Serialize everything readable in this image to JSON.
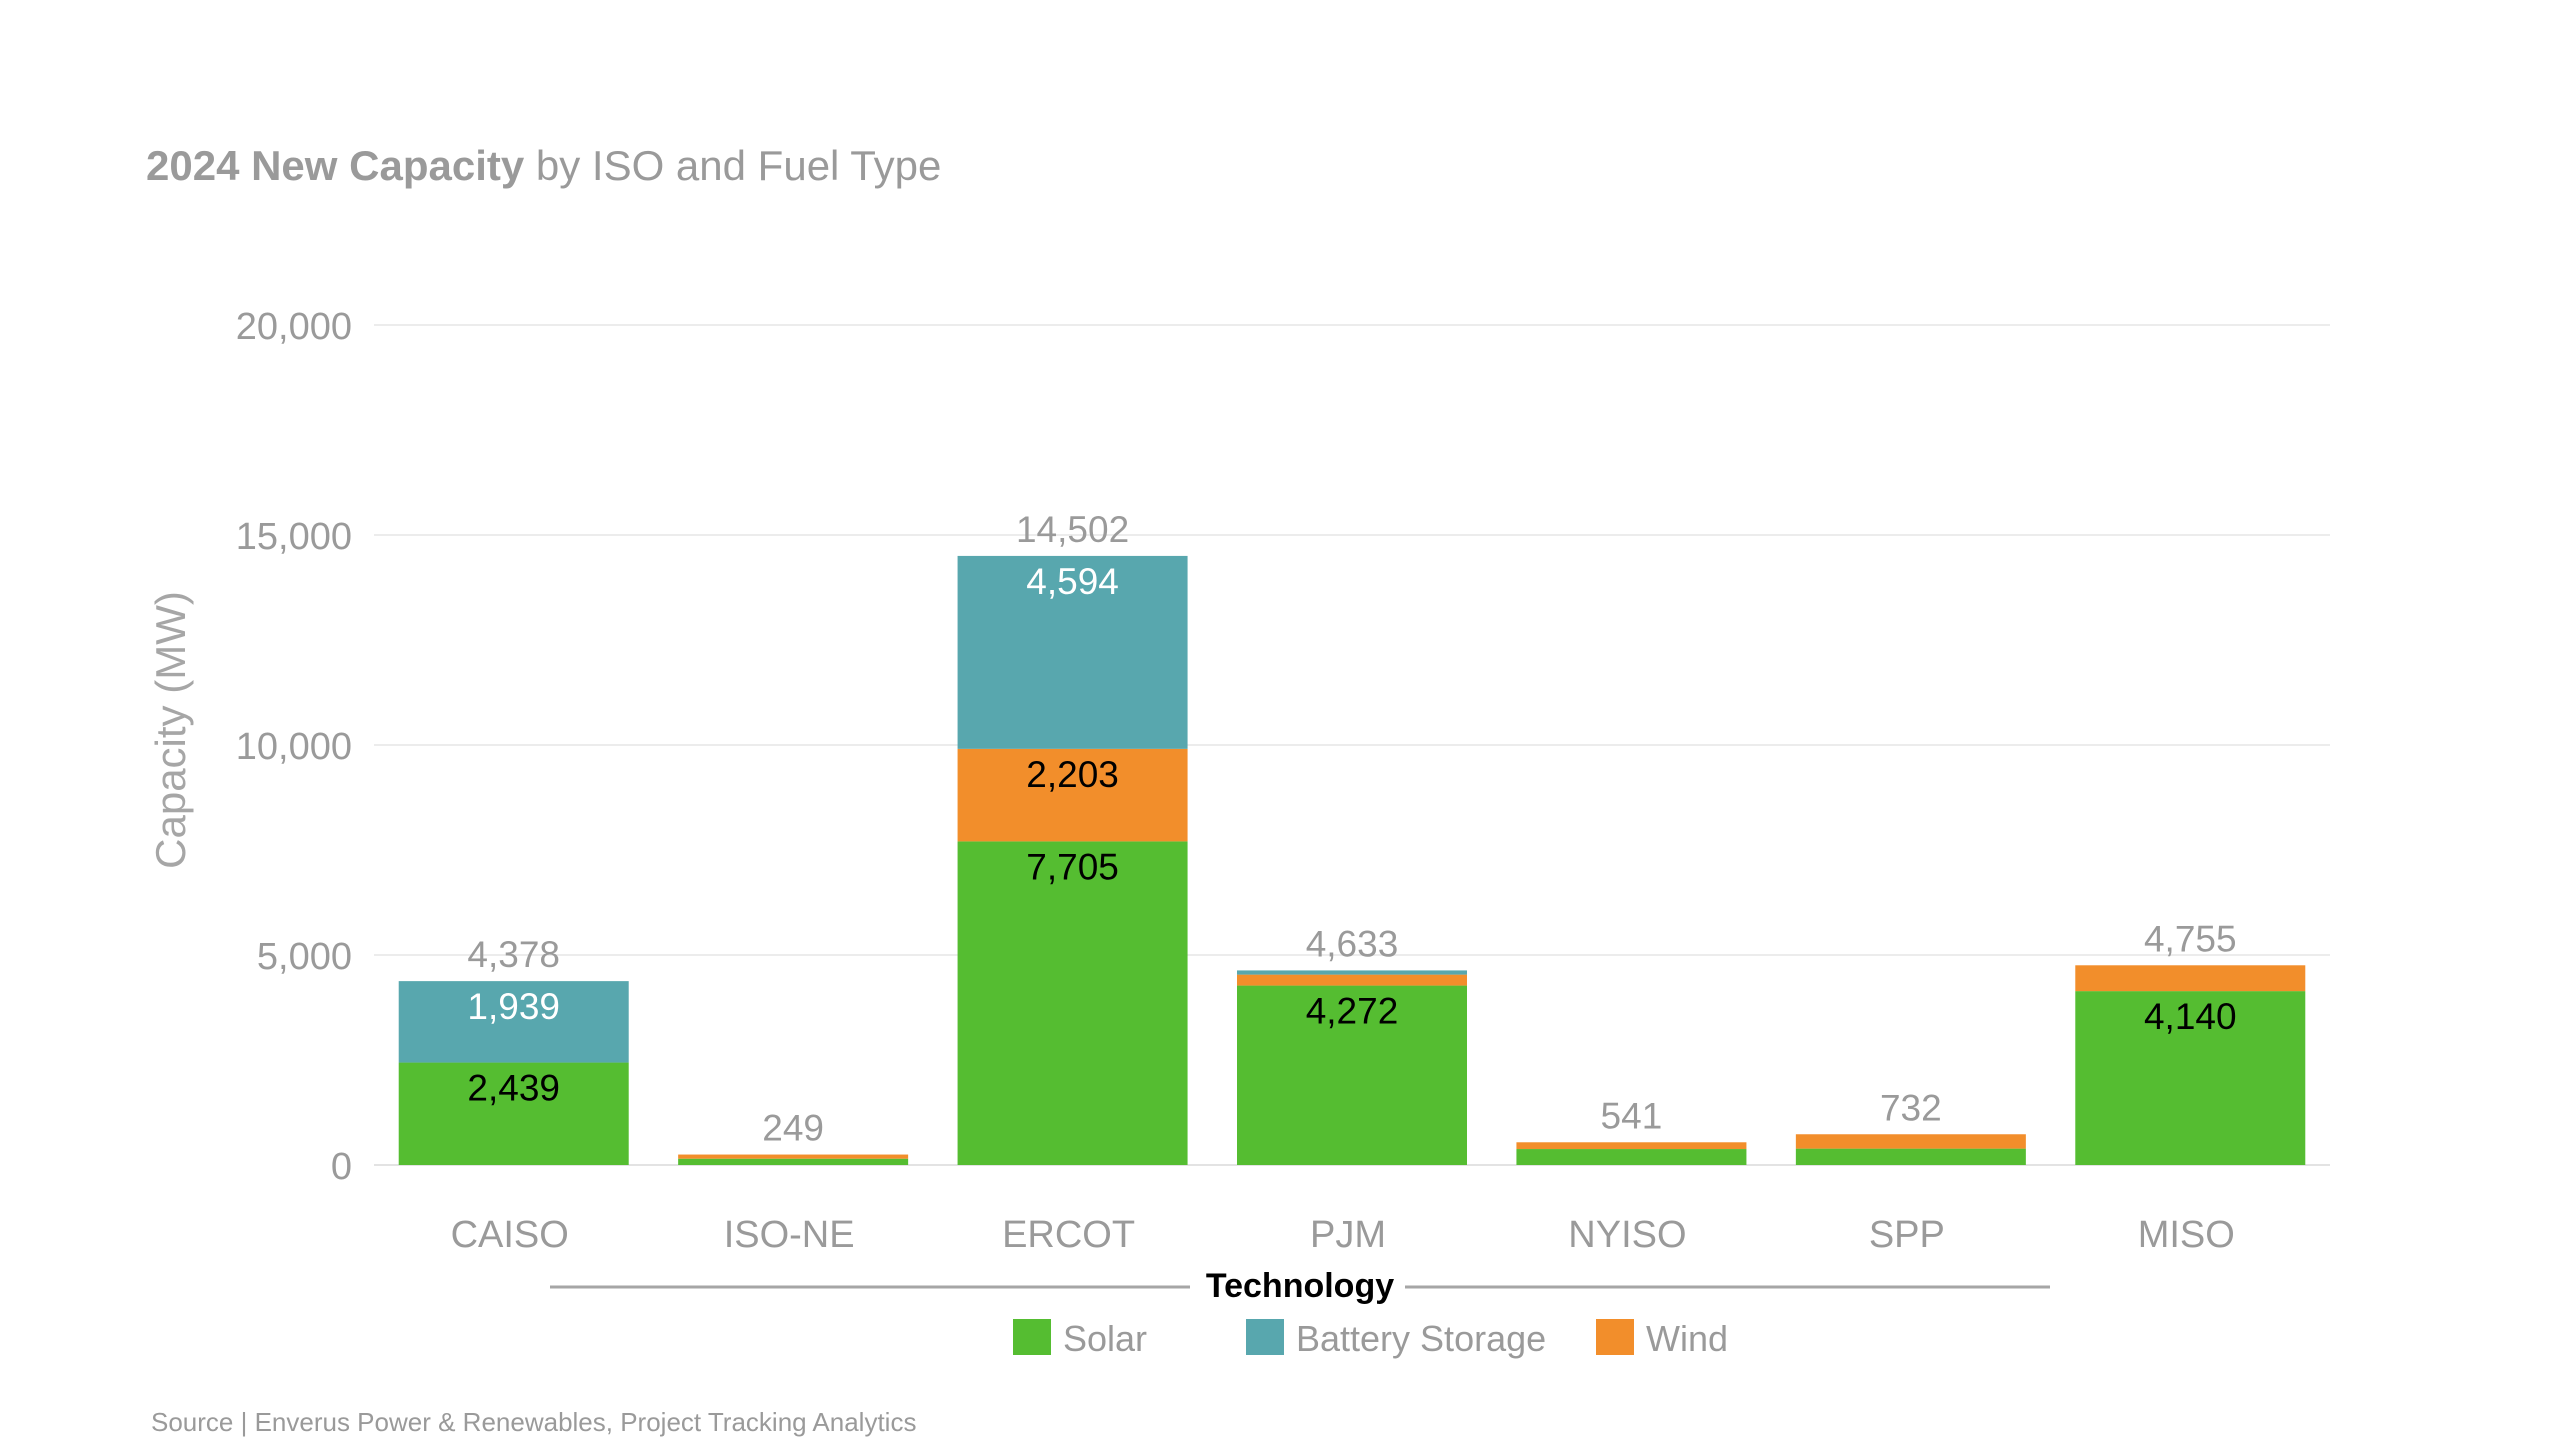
{
  "title": {
    "strong": "2024 New Capacity",
    "rest": " by ISO and Fuel Type"
  },
  "source": "Source | Enverus Power & Renewables, Project Tracking Analytics",
  "legend": {
    "title": "Technology"
  },
  "colors": {
    "Solar": "#55bd31",
    "Battery Storage": "#58a7ae",
    "Wind": "#f28e2b",
    "grid": "#ececec",
    "muted_text": "#9a9a9a",
    "dark_text": "#000000"
  },
  "chart_data": {
    "type": "bar",
    "stacked": true,
    "categories": [
      "CAISO",
      "ISO-NE",
      "ERCOT",
      "PJM",
      "NYISO",
      "SPP",
      "MISO"
    ],
    "series": [
      {
        "name": "Solar",
        "values": [
          2439,
          150,
          7705,
          4272,
          380,
          390,
          4140
        ],
        "labels": [
          "2,439",
          "",
          "7,705",
          "4,272",
          "",
          "",
          "4,140"
        ]
      },
      {
        "name": "Wind",
        "values": [
          0,
          99,
          2203,
          261,
          161,
          342,
          615
        ],
        "labels": [
          "",
          "",
          "2,203",
          "",
          "",
          "",
          ""
        ]
      },
      {
        "name": "Battery Storage",
        "values": [
          1939,
          0,
          4594,
          100,
          0,
          0,
          0
        ],
        "labels": [
          "1,939",
          "",
          "4,594",
          "",
          "",
          "",
          ""
        ]
      }
    ],
    "totals": [
      4378,
      249,
      14502,
      4633,
      541,
      732,
      4755
    ],
    "total_labels": [
      "4,378",
      "249",
      "14,502",
      "4,633",
      "541",
      "732",
      "4,755"
    ],
    "ylabel": "Capacity (MW)",
    "xlabel": "",
    "ylim": [
      0,
      20000
    ],
    "yticks": [
      0,
      5000,
      10000,
      15000,
      20000
    ],
    "ytick_labels": [
      "0",
      "5,000",
      "10,000",
      "15,000",
      "20,000"
    ],
    "legend_order": [
      "Solar",
      "Battery Storage",
      "Wind"
    ],
    "legend_placement": "bottom",
    "grid": true
  }
}
